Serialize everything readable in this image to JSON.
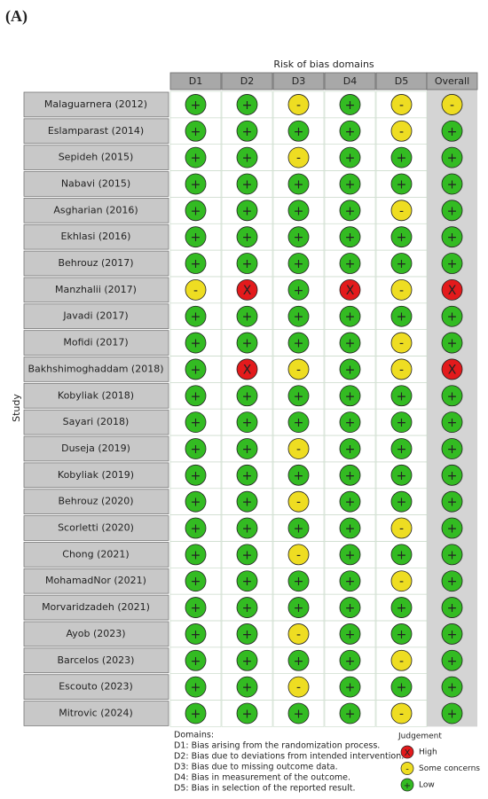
{
  "panel_label": "(A)",
  "title": "Risk of bias domains",
  "y_label": "Study",
  "columns": [
    "D1",
    "D2",
    "D3",
    "D4",
    "D5",
    "Overall"
  ],
  "rows": [
    {
      "study": "Malaguarnera (2012)",
      "judgements": [
        "+",
        "+",
        "-",
        "+",
        "-",
        "-"
      ]
    },
    {
      "study": "Eslamparast (2014)",
      "judgements": [
        "+",
        "+",
        "+",
        "+",
        "-",
        "+"
      ]
    },
    {
      "study": "Sepideh (2015)",
      "judgements": [
        "+",
        "+",
        "-",
        "+",
        "+",
        "+"
      ]
    },
    {
      "study": "Nabavi (2015)",
      "judgements": [
        "+",
        "+",
        "+",
        "+",
        "+",
        "+"
      ]
    },
    {
      "study": "Asgharian (2016)",
      "judgements": [
        "+",
        "+",
        "+",
        "+",
        "-",
        "+"
      ]
    },
    {
      "study": "Ekhlasi (2016)",
      "judgements": [
        "+",
        "+",
        "+",
        "+",
        "+",
        "+"
      ]
    },
    {
      "study": "Behrouz (2017)",
      "judgements": [
        "+",
        "+",
        "+",
        "+",
        "+",
        "+"
      ]
    },
    {
      "study": "Manzhalii (2017)",
      "judgements": [
        "-",
        "X",
        "+",
        "X",
        "-",
        "X"
      ]
    },
    {
      "study": "Javadi (2017)",
      "judgements": [
        "+",
        "+",
        "+",
        "+",
        "+",
        "+"
      ]
    },
    {
      "study": "Mofidi (2017)",
      "judgements": [
        "+",
        "+",
        "+",
        "+",
        "-",
        "+"
      ]
    },
    {
      "study": "Bakhshimoghaddam (2018)",
      "judgements": [
        "+",
        "X",
        "-",
        "+",
        "-",
        "X"
      ]
    },
    {
      "study": "Kobyliak (2018)",
      "judgements": [
        "+",
        "+",
        "+",
        "+",
        "+",
        "+"
      ]
    },
    {
      "study": "Sayari (2018)",
      "judgements": [
        "+",
        "+",
        "+",
        "+",
        "+",
        "+"
      ]
    },
    {
      "study": "Duseja (2019)",
      "judgements": [
        "+",
        "+",
        "-",
        "+",
        "+",
        "+"
      ]
    },
    {
      "study": "Kobyliak (2019)",
      "judgements": [
        "+",
        "+",
        "+",
        "+",
        "+",
        "+"
      ]
    },
    {
      "study": "Behrouz (2020)",
      "judgements": [
        "+",
        "+",
        "-",
        "+",
        "+",
        "+"
      ]
    },
    {
      "study": "Scorletti (2020)",
      "judgements": [
        "+",
        "+",
        "+",
        "+",
        "-",
        "+"
      ]
    },
    {
      "study": "Chong (2021)",
      "judgements": [
        "+",
        "+",
        "-",
        "+",
        "+",
        "+"
      ]
    },
    {
      "study": "MohamadNor (2021)",
      "judgements": [
        "+",
        "+",
        "+",
        "+",
        "-",
        "+"
      ]
    },
    {
      "study": "Morvaridzadeh (2021)",
      "judgements": [
        "+",
        "+",
        "+",
        "+",
        "+",
        "+"
      ]
    },
    {
      "study": "Ayob (2023)",
      "judgements": [
        "+",
        "+",
        "-",
        "+",
        "+",
        "+"
      ]
    },
    {
      "study": "Barcelos (2023)",
      "judgements": [
        "+",
        "+",
        "+",
        "+",
        "-",
        "+"
      ]
    },
    {
      "study": "Escouto (2023)",
      "judgements": [
        "+",
        "+",
        "-",
        "+",
        "+",
        "+"
      ]
    },
    {
      "study": "Mitrovic (2024)",
      "judgements": [
        "+",
        "+",
        "+",
        "+",
        "-",
        "+"
      ]
    }
  ],
  "domains": {
    "heading": "Domains:",
    "items": [
      "D1: Bias arising from the randomization process.",
      "D2: Bias due to deviations from intended intervention.",
      "D3: Bias due to missing outcome data.",
      "D4: Bias in measurement of the outcome.",
      "D5: Bias in selection of the reported result."
    ]
  },
  "judgement_legend": {
    "heading": "Judgement",
    "items": [
      {
        "symbol": "X",
        "label": "High",
        "color": "#e31a1c"
      },
      {
        "symbol": "-",
        "label": "Some concerns",
        "color": "#eedd22"
      },
      {
        "symbol": "+",
        "label": "Low",
        "color": "#33bb22"
      }
    ]
  }
}
